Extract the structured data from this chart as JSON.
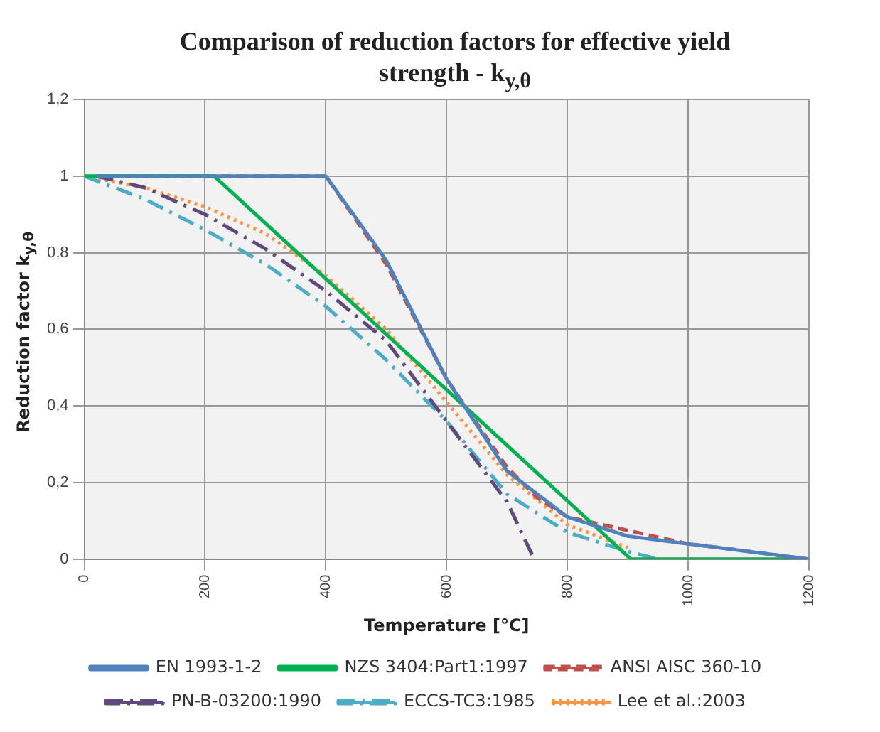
{
  "chart_data": {
    "type": "line",
    "title": "Comparison of reduction factors for effective yield strength - k$_{y,θ}$",
    "xlabel": "Temperature [°C]",
    "ylabel": "Reduction factor k$_{y,θ}$",
    "xlim": [
      0,
      1200
    ],
    "xticks": [
      0,
      200,
      400,
      600,
      800,
      1000,
      1200
    ],
    "ylim": [
      0,
      1.2
    ],
    "yticks": [
      {
        "value": 0,
        "label": "0"
      },
      {
        "value": 0.2,
        "label": "0,2"
      },
      {
        "value": 0.4,
        "label": "0,4"
      },
      {
        "value": 0.6,
        "label": "0,6"
      },
      {
        "value": 0.8,
        "label": "0,8"
      },
      {
        "value": 1,
        "label": "1"
      },
      {
        "value": 1.2,
        "label": "1,2"
      }
    ],
    "grid": true,
    "legend": "bottom",
    "marker": "none",
    "series": [
      {
        "name": "EN 1993-1-2",
        "color": "#4f81bd",
        "line_style": "solid",
        "x": [
          20,
          400,
          500,
          600,
          700,
          800,
          900,
          1000,
          1100,
          1200
        ],
        "values": [
          1,
          1,
          0.78,
          0.47,
          0.23,
          0.11,
          0.06,
          0.04,
          0.02,
          0
        ]
      },
      {
        "name": "NZS 3404:Part1:1997",
        "color": "#00b050",
        "line_style": "solid",
        "x": [
          0,
          215,
          905,
          1200
        ],
        "values": [
          1,
          1,
          0,
          0
        ]
      },
      {
        "name": "ANSI AISC 360-10",
        "color": "#c0504d",
        "line_style": "dashed",
        "x": [
          20,
          400,
          500,
          600,
          700,
          750,
          800,
          1000,
          1200
        ],
        "values": [
          1,
          1,
          0.77,
          0.47,
          0.24,
          0.16,
          0.11,
          0.04,
          0
        ]
      },
      {
        "name": "PN-B-03200:1990",
        "color": "#604a7b",
        "line_style": "dashdot",
        "x": [
          20,
          100,
          200,
          300,
          400,
          500,
          600,
          700,
          745
        ],
        "values": [
          1,
          0.97,
          0.9,
          0.81,
          0.7,
          0.57,
          0.36,
          0.15,
          0
        ]
      },
      {
        "name": "ECCS-TC3:1985",
        "color": "#4bacc6",
        "line_style": "dashdot",
        "x": [
          0,
          100,
          200,
          300,
          400,
          500,
          600,
          700,
          800,
          900,
          950
        ],
        "values": [
          1,
          0.94,
          0.86,
          0.77,
          0.66,
          0.52,
          0.36,
          0.17,
          0.07,
          0.02,
          0
        ]
      },
      {
        "name": "Lee et al.:2003",
        "color": "#f79646",
        "line_style": "dotted",
        "x": [
          0,
          100,
          200,
          300,
          400,
          500,
          600,
          700,
          800,
          900
        ],
        "values": [
          1,
          0.97,
          0.92,
          0.85,
          0.74,
          0.6,
          0.41,
          0.22,
          0.09,
          0.03
        ]
      }
    ]
  }
}
